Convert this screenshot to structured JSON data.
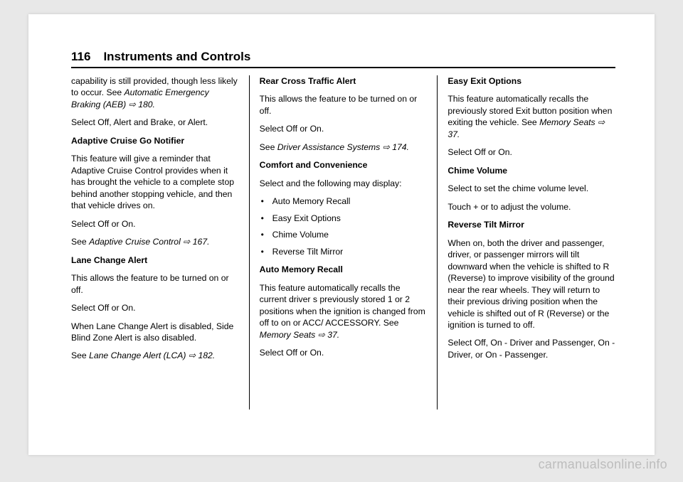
{
  "header": {
    "page_number": "116",
    "section": "Instruments and Controls"
  },
  "col1": {
    "p1a": "capability is still provided, though less likely to occur. See ",
    "p1b": "Automatic Emergency Braking (AEB) ⇨ 180.",
    "p2": "Select Off, Alert and Brake, or Alert.",
    "h1": "Adaptive Cruise Go Notifier",
    "p3": "This feature will give a reminder that Adaptive Cruise Control provides when it has brought the vehicle to a complete stop behind another stopping vehicle, and then that vehicle drives on.",
    "p4": "Select Off or On.",
    "p5a": "See ",
    "p5b": "Adaptive Cruise Control ⇨ 167.",
    "h2": "Lane Change Alert",
    "p6": "This allows the feature to be turned on or off.",
    "p7": "Select Off or On.",
    "p8": "When Lane Change Alert is disabled, Side Blind Zone Alert is also disabled.",
    "p9a": "See ",
    "p9b": "Lane Change Alert (LCA) ⇨ 182."
  },
  "col2": {
    "h1": "Rear Cross Traffic Alert",
    "p1": "This allows the feature to be turned on or off.",
    "p2": "Select Off or On.",
    "p3a": "See ",
    "p3b": "Driver Assistance Systems ⇨ 174.",
    "h2": "Comfort and Convenience",
    "p4": "Select and the following may display:",
    "li1": "Auto Memory Recall",
    "li2": "Easy Exit Options",
    "li3": "Chime Volume",
    "li4": "Reverse Tilt Mirror",
    "h3": "Auto Memory Recall",
    "p5a": "This feature automatically recalls the current driver s previously stored 1 or 2 positions when the ignition is changed from off to on or ACC/ ACCESSORY. See ",
    "p5b": "Memory Seats ⇨ 37.",
    "p6": "Select Off or On."
  },
  "col3": {
    "h1": "Easy Exit Options",
    "p1a": "This feature automatically recalls the previously stored Exit button position when exiting the vehicle. See ",
    "p1b": "Memory Seats ⇨ 37.",
    "p2": "Select Off or On.",
    "h2": "Chime Volume",
    "p3": "Select to set the chime volume level.",
    "p4": "Touch + or    to adjust the volume.",
    "h3": "Reverse Tilt Mirror",
    "p5": "When on, both the driver and passenger, driver, or passenger mirrors will tilt downward when the vehicle is shifted to R (Reverse) to improve visibility of the ground near the rear wheels. They will return to their previous driving position when the vehicle is shifted out of R (Reverse) or the ignition is turned to off.",
    "p6": "Select Off, On - Driver and Passenger, On - Driver, or On - Passenger."
  },
  "watermark": "carmanualsonline.info"
}
